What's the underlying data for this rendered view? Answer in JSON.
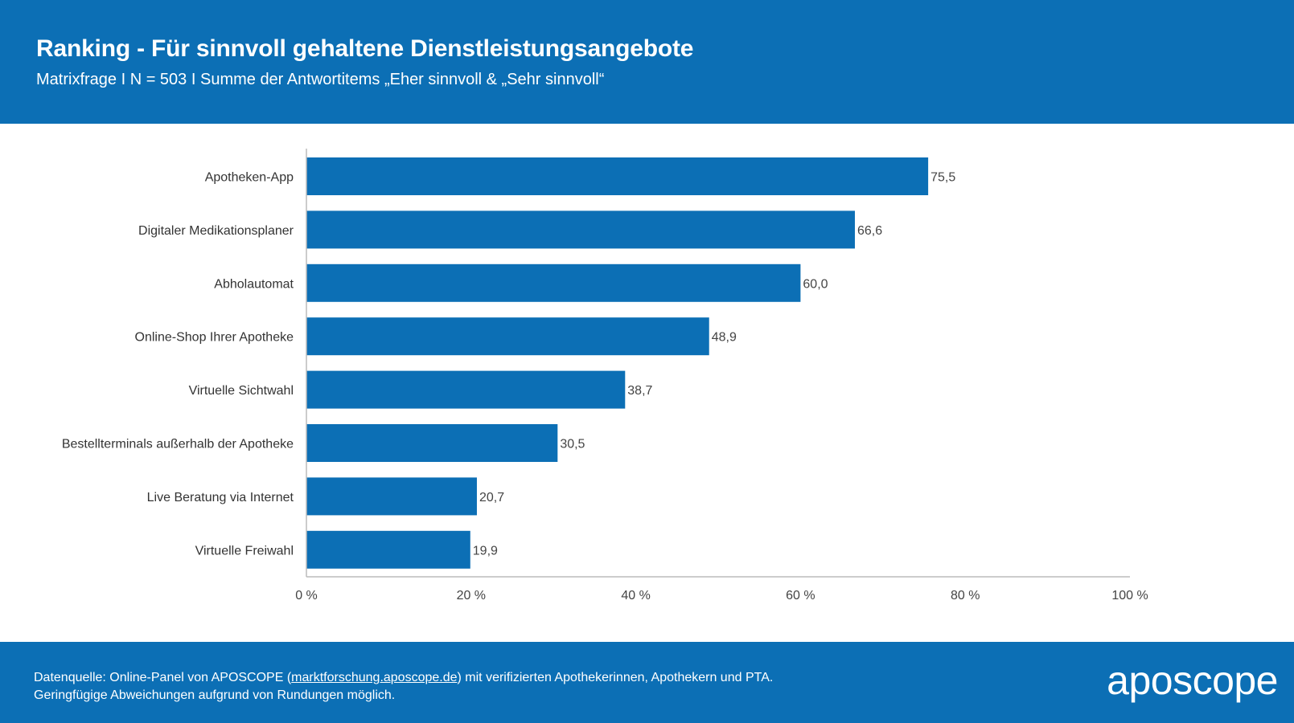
{
  "colors": {
    "brand": "#0c6fb5",
    "bar": "#0c6fb5",
    "axis": "#bbbbbb"
  },
  "header": {
    "title": "Ranking - Für sinnvoll gehaltene Dienstleistungsangebote",
    "subtitle": "Matrixfrage I N = 503 I Summe der Antwortitems „Eher sinnvoll & „Sehr sinnvoll“"
  },
  "footer": {
    "source_prefix": "Datenquelle: Online-Panel von APOSCOPE (",
    "source_link": "marktforschung.aposcope.de",
    "source_suffix": ") mit verifizierten Apothekerinnen, Apothekern und PTA.",
    "note": "Geringfügige Abweichungen aufgrund von Rundungen möglich.",
    "logo": "aposcope"
  },
  "chart_data": {
    "type": "bar",
    "orientation": "horizontal",
    "title": "Ranking - Für sinnvoll gehaltene Dienstleistungsangebote",
    "categories": [
      "Apotheken-App",
      "Digitaler Medikationsplaner",
      "Abholautomat",
      "Online-Shop Ihrer Apotheke",
      "Virtuelle Sichtwahl",
      "Bestellterminals außerhalb der Apotheke",
      "Live Beratung via Internet",
      "Virtuelle Freiwahl"
    ],
    "values": [
      75.5,
      66.6,
      60.0,
      48.9,
      38.7,
      30.5,
      20.7,
      19.9
    ],
    "value_labels": [
      "75,5",
      "66,6",
      "60,0",
      "48,9",
      "38,7",
      "30,5",
      "20,7",
      "19,9"
    ],
    "xlabel": "",
    "ylabel": "",
    "xlim": [
      0,
      100
    ],
    "xticks": [
      0,
      20,
      40,
      60,
      80,
      100
    ],
    "xtick_labels": [
      "0 %",
      "20 %",
      "40 %",
      "60 %",
      "80 %",
      "100 %"
    ],
    "grid": false,
    "legend": "none"
  }
}
